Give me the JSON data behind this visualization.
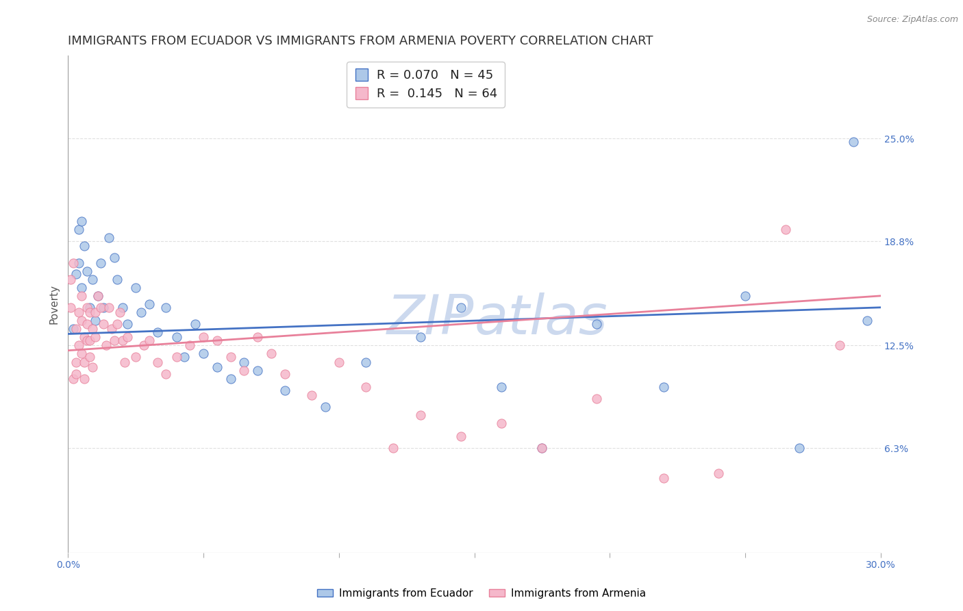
{
  "title": "IMMIGRANTS FROM ECUADOR VS IMMIGRANTS FROM ARMENIA POVERTY CORRELATION CHART",
  "source": "Source: ZipAtlas.com",
  "ylabel": "Poverty",
  "xlim": [
    0.0,
    0.3
  ],
  "ylim": [
    0.0,
    0.3
  ],
  "xtick_values": [
    0.0,
    0.05,
    0.1,
    0.15,
    0.2,
    0.25,
    0.3
  ],
  "xticklabels": [
    "0.0%",
    "",
    "",
    "",
    "",
    "",
    "30.0%"
  ],
  "ytick_values": [
    0.063,
    0.125,
    0.188,
    0.25
  ],
  "ytick_labels": [
    "6.3%",
    "12.5%",
    "18.8%",
    "25.0%"
  ],
  "ecuador_R": 0.07,
  "ecuador_N": 45,
  "armenia_R": 0.145,
  "armenia_N": 64,
  "ecuador_color": "#adc8e8",
  "armenia_color": "#f5b8cb",
  "ecuador_line_color": "#4472c4",
  "armenia_line_color": "#e8809a",
  "ecuador_line_start_y": 0.132,
  "ecuador_line_end_y": 0.148,
  "armenia_line_start_y": 0.122,
  "armenia_line_end_y": 0.155,
  "ecuador_scatter_x": [
    0.002,
    0.003,
    0.004,
    0.004,
    0.005,
    0.005,
    0.006,
    0.007,
    0.008,
    0.009,
    0.01,
    0.011,
    0.012,
    0.013,
    0.015,
    0.017,
    0.018,
    0.02,
    0.022,
    0.025,
    0.027,
    0.03,
    0.033,
    0.036,
    0.04,
    0.043,
    0.047,
    0.05,
    0.055,
    0.06,
    0.065,
    0.07,
    0.08,
    0.095,
    0.11,
    0.13,
    0.145,
    0.16,
    0.175,
    0.195,
    0.22,
    0.25,
    0.27,
    0.29,
    0.295
  ],
  "ecuador_scatter_y": [
    0.135,
    0.168,
    0.195,
    0.175,
    0.2,
    0.16,
    0.185,
    0.17,
    0.148,
    0.165,
    0.14,
    0.155,
    0.175,
    0.148,
    0.19,
    0.178,
    0.165,
    0.148,
    0.138,
    0.16,
    0.145,
    0.15,
    0.133,
    0.148,
    0.13,
    0.118,
    0.138,
    0.12,
    0.112,
    0.105,
    0.115,
    0.11,
    0.098,
    0.088,
    0.115,
    0.13,
    0.148,
    0.1,
    0.063,
    0.138,
    0.1,
    0.155,
    0.063,
    0.248,
    0.14
  ],
  "armenia_scatter_x": [
    0.001,
    0.001,
    0.002,
    0.002,
    0.003,
    0.003,
    0.003,
    0.004,
    0.004,
    0.005,
    0.005,
    0.005,
    0.006,
    0.006,
    0.006,
    0.007,
    0.007,
    0.007,
    0.008,
    0.008,
    0.008,
    0.009,
    0.009,
    0.01,
    0.01,
    0.011,
    0.012,
    0.013,
    0.014,
    0.015,
    0.016,
    0.017,
    0.018,
    0.019,
    0.02,
    0.021,
    0.022,
    0.025,
    0.028,
    0.03,
    0.033,
    0.036,
    0.04,
    0.045,
    0.05,
    0.055,
    0.06,
    0.065,
    0.07,
    0.075,
    0.08,
    0.09,
    0.1,
    0.11,
    0.12,
    0.13,
    0.145,
    0.16,
    0.175,
    0.195,
    0.22,
    0.24,
    0.265,
    0.285
  ],
  "armenia_scatter_y": [
    0.148,
    0.165,
    0.105,
    0.175,
    0.115,
    0.135,
    0.108,
    0.145,
    0.125,
    0.14,
    0.12,
    0.155,
    0.13,
    0.115,
    0.105,
    0.148,
    0.128,
    0.138,
    0.145,
    0.118,
    0.128,
    0.112,
    0.135,
    0.145,
    0.13,
    0.155,
    0.148,
    0.138,
    0.125,
    0.148,
    0.135,
    0.128,
    0.138,
    0.145,
    0.128,
    0.115,
    0.13,
    0.118,
    0.125,
    0.128,
    0.115,
    0.108,
    0.118,
    0.125,
    0.13,
    0.128,
    0.118,
    0.11,
    0.13,
    0.12,
    0.108,
    0.095,
    0.115,
    0.1,
    0.063,
    0.083,
    0.07,
    0.078,
    0.063,
    0.093,
    0.045,
    0.048,
    0.195,
    0.125
  ],
  "background_color": "#ffffff",
  "grid_color": "#e0e0e0",
  "title_fontsize": 13,
  "axis_label_fontsize": 11,
  "tick_fontsize": 10,
  "legend_fontsize": 13,
  "watermark_color": "#ccd9ee"
}
